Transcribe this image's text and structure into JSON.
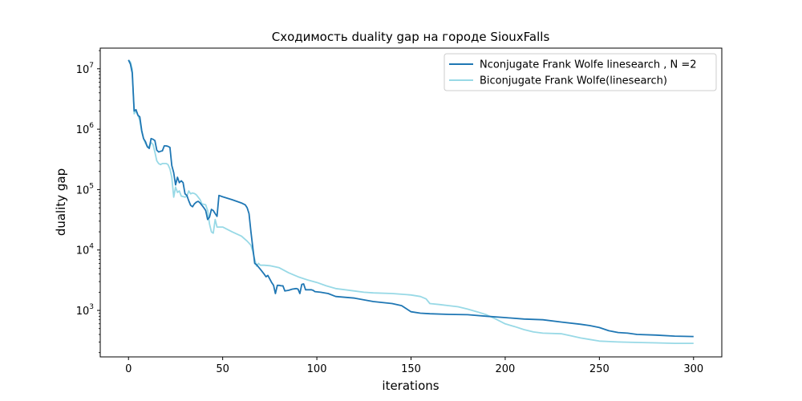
{
  "chart_data": {
    "type": "line",
    "title": "Сходимость duality gap на городе SiouxFalls",
    "xlabel": "iterations",
    "ylabel": "duality gap",
    "xlim": [
      -15,
      315
    ],
    "ylim": [
      170,
      22000000
    ],
    "yscale": "log",
    "grid": false,
    "legend_position": "top-right",
    "xticks": [
      0,
      50,
      100,
      150,
      200,
      250,
      300
    ],
    "yticks": [
      {
        "value": 1000,
        "base": "10",
        "exp": "3"
      },
      {
        "value": 10000,
        "base": "10",
        "exp": "4"
      },
      {
        "value": 100000,
        "base": "10",
        "exp": "5"
      },
      {
        "value": 1000000,
        "base": "10",
        "exp": "6"
      },
      {
        "value": 10000000,
        "base": "10",
        "exp": "7"
      }
    ],
    "series": [
      {
        "name": "Nconjugate Frank Wolfe linesearch , N =2",
        "color": "#1f77b4",
        "points": [
          [
            0,
            14000000
          ],
          [
            1,
            12000000
          ],
          [
            2,
            8500000
          ],
          [
            3,
            2000000
          ],
          [
            4,
            2100000
          ],
          [
            5,
            1700000
          ],
          [
            6,
            1600000
          ],
          [
            7,
            950000
          ],
          [
            8,
            700000
          ],
          [
            9,
            620000
          ],
          [
            10,
            510000
          ],
          [
            11,
            480000
          ],
          [
            12,
            700000
          ],
          [
            13,
            680000
          ],
          [
            14,
            650000
          ],
          [
            15,
            450000
          ],
          [
            16,
            420000
          ],
          [
            17,
            430000
          ],
          [
            18,
            440000
          ],
          [
            19,
            530000
          ],
          [
            20,
            530000
          ],
          [
            21,
            520000
          ],
          [
            22,
            500000
          ],
          [
            23,
            250000
          ],
          [
            24,
            190000
          ],
          [
            25,
            120000
          ],
          [
            26,
            160000
          ],
          [
            27,
            130000
          ],
          [
            28,
            140000
          ],
          [
            29,
            130000
          ],
          [
            30,
            85000
          ],
          [
            31,
            80000
          ],
          [
            32,
            65000
          ],
          [
            33,
            55000
          ],
          [
            34,
            52000
          ],
          [
            35,
            58000
          ],
          [
            36,
            62000
          ],
          [
            37,
            64000
          ],
          [
            38,
            60000
          ],
          [
            39,
            55000
          ],
          [
            40,
            50000
          ],
          [
            41,
            45000
          ],
          [
            42,
            32000
          ],
          [
            43,
            35000
          ],
          [
            44,
            47000
          ],
          [
            45,
            45000
          ],
          [
            46,
            40000
          ],
          [
            47,
            36000
          ],
          [
            48,
            80000
          ],
          [
            50,
            76000
          ],
          [
            55,
            68000
          ],
          [
            60,
            60000
          ],
          [
            62,
            56000
          ],
          [
            63,
            50000
          ],
          [
            64,
            40000
          ],
          [
            65,
            20000
          ],
          [
            66,
            11000
          ],
          [
            67,
            6000
          ],
          [
            68,
            5700
          ],
          [
            70,
            4800
          ],
          [
            72,
            4000
          ],
          [
            73,
            3600
          ],
          [
            74,
            3800
          ],
          [
            76,
            2900
          ],
          [
            77,
            2600
          ],
          [
            78,
            1900
          ],
          [
            79,
            2600
          ],
          [
            80,
            2600
          ],
          [
            81,
            2550
          ],
          [
            82,
            2550
          ],
          [
            83,
            2100
          ],
          [
            85,
            2150
          ],
          [
            87,
            2250
          ],
          [
            89,
            2300
          ],
          [
            90,
            2250
          ],
          [
            91,
            1900
          ],
          [
            92,
            2700
          ],
          [
            93,
            2750
          ],
          [
            94,
            2200
          ],
          [
            95,
            2200
          ],
          [
            97,
            2200
          ],
          [
            98,
            2150
          ],
          [
            99,
            2050
          ],
          [
            102,
            2000
          ],
          [
            106,
            1900
          ],
          [
            110,
            1700
          ],
          [
            120,
            1600
          ],
          [
            130,
            1400
          ],
          [
            140,
            1300
          ],
          [
            145,
            1200
          ],
          [
            150,
            950
          ],
          [
            155,
            900
          ],
          [
            160,
            880
          ],
          [
            170,
            860
          ],
          [
            180,
            850
          ],
          [
            190,
            800
          ],
          [
            200,
            760
          ],
          [
            210,
            720
          ],
          [
            220,
            700
          ],
          [
            230,
            640
          ],
          [
            240,
            590
          ],
          [
            245,
            560
          ],
          [
            250,
            520
          ],
          [
            255,
            460
          ],
          [
            260,
            430
          ],
          [
            265,
            420
          ],
          [
            270,
            400
          ],
          [
            280,
            390
          ],
          [
            290,
            375
          ],
          [
            300,
            370
          ]
        ]
      },
      {
        "name": "Biconjugate Frank Wolfe(linesearch)",
        "color": "#98d9e6",
        "points": [
          [
            0,
            14000000
          ],
          [
            1,
            13000000
          ],
          [
            2,
            9800000
          ],
          [
            3,
            1800000
          ],
          [
            4,
            2000000
          ],
          [
            5,
            1700000
          ],
          [
            6,
            1400000
          ],
          [
            7,
            900000
          ],
          [
            8,
            700000
          ],
          [
            9,
            580000
          ],
          [
            10,
            520000
          ],
          [
            11,
            520000
          ],
          [
            12,
            600000
          ],
          [
            13,
            560000
          ],
          [
            14,
            420000
          ],
          [
            15,
            300000
          ],
          [
            16,
            270000
          ],
          [
            17,
            260000
          ],
          [
            18,
            270000
          ],
          [
            19,
            270000
          ],
          [
            20,
            270000
          ],
          [
            21,
            260000
          ],
          [
            22,
            220000
          ],
          [
            23,
            160000
          ],
          [
            24,
            75000
          ],
          [
            25,
            110000
          ],
          [
            26,
            90000
          ],
          [
            27,
            95000
          ],
          [
            28,
            78000
          ],
          [
            30,
            75000
          ],
          [
            31,
            78000
          ],
          [
            32,
            95000
          ],
          [
            33,
            85000
          ],
          [
            34,
            88000
          ],
          [
            35,
            86000
          ],
          [
            36,
            82000
          ],
          [
            37,
            75000
          ],
          [
            38,
            68000
          ],
          [
            39,
            58000
          ],
          [
            40,
            57000
          ],
          [
            41,
            56000
          ],
          [
            42,
            45000
          ],
          [
            43,
            27000
          ],
          [
            44,
            20000
          ],
          [
            45,
            19000
          ],
          [
            46,
            32000
          ],
          [
            47,
            24000
          ],
          [
            50,
            24000
          ],
          [
            55,
            20000
          ],
          [
            60,
            17000
          ],
          [
            63,
            14000
          ],
          [
            65,
            12000
          ],
          [
            66,
            9500
          ],
          [
            67,
            7000
          ],
          [
            68,
            5400
          ],
          [
            69,
            6000
          ],
          [
            70,
            5600
          ],
          [
            72,
            5600
          ],
          [
            75,
            5500
          ],
          [
            80,
            5100
          ],
          [
            85,
            4200
          ],
          [
            90,
            3600
          ],
          [
            95,
            3200
          ],
          [
            100,
            2900
          ],
          [
            105,
            2550
          ],
          [
            110,
            2300
          ],
          [
            115,
            2200
          ],
          [
            120,
            2100
          ],
          [
            125,
            2000
          ],
          [
            130,
            1950
          ],
          [
            140,
            1900
          ],
          [
            145,
            1850
          ],
          [
            150,
            1800
          ],
          [
            155,
            1700
          ],
          [
            158,
            1550
          ],
          [
            160,
            1300
          ],
          [
            165,
            1250
          ],
          [
            170,
            1200
          ],
          [
            175,
            1150
          ],
          [
            180,
            1050
          ],
          [
            185,
            950
          ],
          [
            190,
            850
          ],
          [
            195,
            720
          ],
          [
            200,
            600
          ],
          [
            205,
            540
          ],
          [
            210,
            480
          ],
          [
            215,
            440
          ],
          [
            220,
            420
          ],
          [
            230,
            410
          ],
          [
            235,
            380
          ],
          [
            240,
            350
          ],
          [
            245,
            330
          ],
          [
            250,
            310
          ],
          [
            260,
            300
          ],
          [
            270,
            295
          ],
          [
            280,
            290
          ],
          [
            290,
            285
          ],
          [
            300,
            285
          ]
        ]
      }
    ]
  }
}
